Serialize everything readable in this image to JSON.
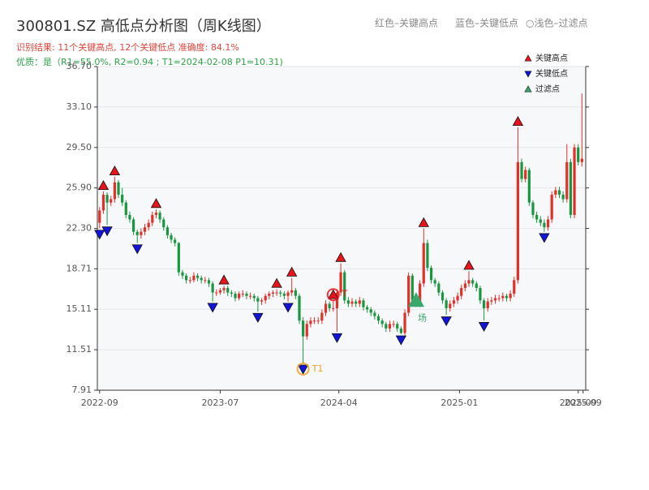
{
  "chart_data": {
    "type": "candlestick",
    "title": "300801.SZ 高低点分析图（周K线图）",
    "top_legend": [
      "红色–关键高点",
      "蓝色–关键低点",
      "○浅色–过滤点"
    ],
    "result_line": "识别结果: 11个关键高点, 12个关键低点  准确度: 84.1%",
    "quality_line": "优质：是（R1=55.0%, R2=0.94 ; T1=2024-02-08 P1=10.31)",
    "up_color": "#e0302a",
    "down_color": "#1a9641",
    "ylim": [
      7.91,
      36.7
    ],
    "yticks": [
      7.91,
      11.51,
      15.11,
      18.71,
      {
        "value": 22.3,
        "label": "22.30"
      },
      {
        "value": 25.9,
        "label": "25.90"
      },
      {
        "value": 29.5,
        "label": "29.50"
      },
      {
        "value": 33.1,
        "label": "33.10"
      },
      {
        "value": 36.7,
        "label": "36.70"
      }
    ],
    "xlim": [
      -0.6,
      129
    ],
    "xticks": [
      {
        "value": 0,
        "label": "2022-09"
      },
      {
        "value": 32,
        "label": "2023-07"
      },
      {
        "value": 63.5,
        "label": "2024-04"
      },
      {
        "value": 95.5,
        "label": "2025-01"
      },
      {
        "value": 127,
        "label": "2025-09"
      },
      {
        "value": 128.3,
        "label": "2025-09"
      }
    ],
    "grid": true,
    "candles": [
      [
        22.8,
        24.2,
        22.3,
        23.9
      ],
      [
        23.9,
        25.6,
        23.6,
        25.3
      ],
      [
        25.3,
        25.5,
        22.6,
        24.6
      ],
      [
        24.6,
        25.2,
        24.3,
        24.9
      ],
      [
        24.9,
        26.9,
        24.6,
        26.4
      ],
      [
        26.4,
        26.6,
        25.0,
        25.3
      ],
      [
        25.3,
        25.9,
        24.3,
        24.6
      ],
      [
        24.6,
        24.8,
        23.2,
        23.5
      ],
      [
        23.5,
        23.8,
        22.8,
        23.1
      ],
      [
        23.1,
        23.3,
        21.7,
        22.0
      ],
      [
        22.0,
        22.2,
        21.0,
        21.7
      ],
      [
        21.7,
        22.3,
        21.4,
        22.0
      ],
      [
        22.0,
        22.7,
        21.7,
        22.4
      ],
      [
        22.4,
        23.1,
        22.1,
        22.8
      ],
      [
        22.8,
        23.8,
        22.5,
        23.5
      ],
      [
        23.5,
        24.0,
        23.2,
        23.7
      ],
      [
        23.7,
        23.9,
        22.8,
        23.1
      ],
      [
        23.1,
        23.3,
        22.1,
        22.4
      ],
      [
        22.4,
        22.6,
        21.4,
        21.7
      ],
      [
        21.7,
        21.9,
        21.0,
        21.3
      ],
      [
        21.3,
        21.5,
        20.7,
        21.0
      ],
      [
        21.0,
        21.1,
        18.1,
        18.4
      ],
      [
        18.4,
        18.6,
        17.8,
        18.1
      ],
      [
        18.1,
        18.3,
        17.4,
        17.7
      ],
      [
        17.7,
        18.0,
        17.4,
        17.7
      ],
      [
        17.7,
        18.4,
        17.5,
        18.1
      ],
      [
        18.1,
        18.3,
        17.6,
        17.9
      ],
      [
        17.9,
        18.1,
        17.4,
        17.7
      ],
      [
        17.7,
        18.0,
        17.4,
        17.7
      ],
      [
        17.7,
        17.9,
        17.1,
        17.4
      ],
      [
        17.4,
        17.6,
        15.8,
        16.6
      ],
      [
        16.6,
        16.9,
        16.3,
        16.6
      ],
      [
        16.6,
        17.0,
        16.4,
        16.8
      ],
      [
        16.8,
        17.2,
        16.5,
        17.0
      ],
      [
        17.0,
        17.2,
        16.3,
        16.6
      ],
      [
        16.6,
        16.8,
        16.2,
        16.5
      ],
      [
        16.5,
        16.7,
        15.8,
        16.1
      ],
      [
        16.1,
        16.7,
        15.9,
        16.5
      ],
      [
        16.5,
        16.8,
        16.2,
        16.5
      ],
      [
        16.5,
        16.7,
        16.0,
        16.3
      ],
      [
        16.3,
        16.6,
        16.0,
        16.3
      ],
      [
        16.3,
        16.5,
        15.8,
        16.1
      ],
      [
        16.1,
        16.3,
        14.9,
        15.8
      ],
      [
        15.8,
        16.1,
        15.5,
        15.9
      ],
      [
        15.9,
        16.5,
        15.6,
        16.3
      ],
      [
        16.3,
        16.7,
        16.0,
        16.5
      ],
      [
        16.5,
        16.8,
        16.2,
        16.6
      ],
      [
        16.6,
        16.9,
        16.3,
        16.6
      ],
      [
        16.6,
        16.8,
        16.2,
        16.5
      ],
      [
        16.5,
        16.7,
        16.0,
        16.3
      ],
      [
        16.3,
        16.8,
        15.8,
        16.6
      ],
      [
        16.6,
        17.9,
        16.3,
        16.8
      ],
      [
        16.8,
        17.0,
        16.0,
        16.3
      ],
      [
        16.3,
        16.5,
        13.8,
        14.1
      ],
      [
        14.1,
        14.4,
        10.3,
        12.7
      ],
      [
        12.7,
        14.1,
        12.4,
        13.8
      ],
      [
        13.8,
        14.4,
        13.5,
        14.1
      ],
      [
        14.1,
        14.4,
        13.8,
        14.1
      ],
      [
        14.1,
        14.4,
        13.8,
        14.1
      ],
      [
        14.1,
        15.1,
        13.8,
        14.8
      ],
      [
        14.8,
        15.9,
        14.5,
        15.6
      ],
      [
        15.6,
        15.8,
        14.9,
        15.2
      ],
      [
        15.2,
        15.9,
        14.9,
        15.2
      ],
      [
        15.2,
        16.9,
        13.1,
        16.6
      ],
      [
        16.6,
        19.2,
        16.3,
        18.4
      ],
      [
        18.4,
        18.6,
        15.6,
        15.9
      ],
      [
        15.9,
        16.2,
        15.3,
        15.6
      ],
      [
        15.6,
        16.1,
        15.3,
        15.8
      ],
      [
        15.8,
        16.0,
        15.3,
        15.6
      ],
      [
        15.6,
        16.2,
        15.3,
        15.9
      ],
      [
        15.9,
        16.1,
        15.0,
        15.3
      ],
      [
        15.3,
        15.5,
        14.8,
        15.1
      ],
      [
        15.1,
        15.3,
        14.5,
        14.8
      ],
      [
        14.8,
        15.0,
        14.2,
        14.5
      ],
      [
        14.5,
        14.7,
        13.8,
        14.1
      ],
      [
        14.1,
        14.3,
        13.5,
        13.8
      ],
      [
        13.8,
        14.0,
        13.1,
        13.4
      ],
      [
        13.4,
        14.1,
        13.1,
        13.8
      ],
      [
        13.8,
        14.1,
        13.5,
        13.8
      ],
      [
        13.8,
        14.0,
        13.1,
        13.4
      ],
      [
        13.4,
        13.6,
        12.9,
        13.0
      ],
      [
        13.0,
        15.1,
        12.8,
        14.8
      ],
      [
        14.8,
        18.4,
        14.5,
        18.1
      ],
      [
        18.1,
        18.3,
        15.6,
        15.9
      ],
      [
        15.9,
        16.1,
        15.3,
        15.6
      ],
      [
        15.6,
        17.7,
        15.3,
        17.4
      ],
      [
        17.4,
        22.3,
        17.1,
        21.0
      ],
      [
        21.0,
        21.3,
        18.5,
        18.8
      ],
      [
        18.8,
        19.0,
        17.4,
        17.7
      ],
      [
        17.7,
        17.9,
        17.1,
        17.4
      ],
      [
        17.4,
        17.6,
        16.3,
        16.6
      ],
      [
        16.6,
        16.8,
        15.6,
        15.9
      ],
      [
        15.9,
        16.1,
        14.6,
        15.2
      ],
      [
        15.2,
        15.9,
        14.9,
        15.6
      ],
      [
        15.6,
        16.2,
        15.3,
        15.9
      ],
      [
        15.9,
        16.6,
        15.6,
        16.3
      ],
      [
        16.3,
        17.3,
        16.0,
        17.0
      ],
      [
        17.0,
        17.7,
        16.7,
        17.4
      ],
      [
        17.4,
        18.5,
        17.1,
        17.7
      ],
      [
        17.7,
        17.9,
        17.1,
        17.4
      ],
      [
        17.4,
        17.6,
        16.7,
        17.0
      ],
      [
        17.0,
        17.2,
        15.6,
        15.9
      ],
      [
        15.9,
        16.1,
        14.1,
        15.2
      ],
      [
        15.2,
        16.1,
        14.9,
        15.8
      ],
      [
        15.8,
        16.2,
        15.5,
        15.9
      ],
      [
        15.9,
        16.4,
        15.6,
        16.1
      ],
      [
        16.1,
        16.4,
        15.8,
        16.1
      ],
      [
        16.1,
        16.6,
        15.8,
        16.3
      ],
      [
        16.3,
        16.5,
        15.8,
        16.1
      ],
      [
        16.1,
        16.8,
        15.8,
        16.5
      ],
      [
        16.5,
        18.0,
        16.2,
        17.7
      ],
      [
        17.7,
        31.3,
        17.4,
        28.2
      ],
      [
        28.2,
        28.5,
        26.4,
        26.7
      ],
      [
        26.7,
        27.8,
        26.4,
        27.5
      ],
      [
        27.5,
        27.7,
        24.3,
        24.6
      ],
      [
        24.6,
        24.8,
        23.2,
        23.5
      ],
      [
        23.5,
        23.8,
        22.8,
        23.1
      ],
      [
        23.1,
        23.4,
        22.5,
        22.8
      ],
      [
        22.8,
        23.1,
        22.0,
        22.4
      ],
      [
        22.4,
        23.4,
        22.1,
        23.1
      ],
      [
        23.1,
        25.6,
        22.8,
        25.3
      ],
      [
        25.3,
        26.0,
        25.0,
        25.7
      ],
      [
        25.7,
        26.0,
        25.0,
        25.3
      ],
      [
        25.3,
        25.6,
        24.6,
        24.9
      ],
      [
        24.9,
        29.8,
        24.6,
        28.2
      ],
      [
        28.2,
        28.5,
        23.2,
        23.5
      ],
      [
        23.5,
        29.8,
        23.2,
        29.5
      ],
      [
        29.5,
        29.8,
        27.9,
        28.2
      ],
      [
        28.2,
        34.3,
        27.8,
        28.5
      ]
    ],
    "series": [
      {
        "name": "关键高点",
        "color": "#e8141b",
        "shape": "up",
        "x": [
          1,
          4,
          15,
          33,
          47,
          51,
          62,
          64,
          86,
          98,
          111
        ],
        "values": [
          25.6,
          26.9,
          24.0,
          17.2,
          16.9,
          17.9,
          15.9,
          19.2,
          22.3,
          18.5,
          31.3
        ]
      },
      {
        "name": "关键低点",
        "color": "#1414d8",
        "shape": "down",
        "x": [
          0,
          2,
          10,
          30,
          42,
          50,
          54,
          63,
          80,
          92,
          102,
          118
        ],
        "values": [
          22.3,
          22.6,
          21.0,
          15.8,
          14.9,
          15.8,
          10.3,
          13.1,
          12.9,
          14.6,
          14.1,
          22.0
        ]
      },
      {
        "name": "过滤点",
        "color": "#3aa76d",
        "shape": "up",
        "x": [
          84
        ],
        "values": [
          15.9
        ]
      }
    ],
    "annotations": [
      {
        "text": "T1",
        "x": 54,
        "value": 10.3,
        "color": "#f0a020"
      },
      {
        "text": "T",
        "x": 62,
        "value": 15.9,
        "color": "#e8141b"
      },
      {
        "text": "场",
        "x": 84,
        "value": 14.3,
        "color": "#3aa76d"
      }
    ]
  }
}
